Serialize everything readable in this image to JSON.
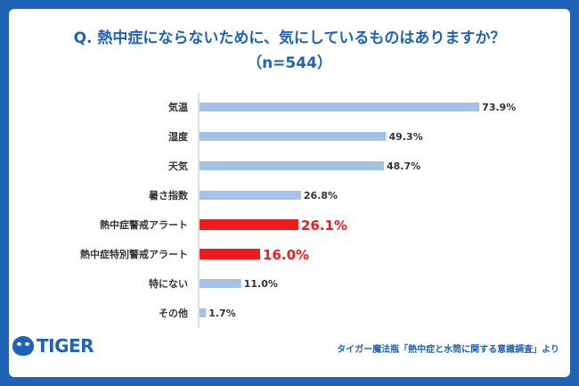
{
  "title_line1": "Q. 熱中症にならないために、気にしているものはありますか？",
  "title_line2": "（n=544）",
  "brand": "TIGER",
  "source": "タイガー魔法瓶「熱中症と水筒に関する意識調査」より",
  "colors": {
    "background": "#1e63b6",
    "bar": "#a4c2e6",
    "highlight": "#ee1c1c",
    "title": "#1e63b6"
  },
  "chart_data": {
    "type": "bar",
    "orientation": "horizontal",
    "title": "Q. 熱中症にならないために、気にしているものはありますか？",
    "subtitle": "（n=544）",
    "categories": [
      "気温",
      "湿度",
      "天気",
      "暑さ指数",
      "熱中症警戒アラート",
      "熱中症特別警戒アラート",
      "特にない",
      "その他"
    ],
    "values": [
      73.9,
      49.3,
      48.7,
      26.8,
      26.1,
      16.0,
      11.0,
      1.7
    ],
    "value_labels": [
      "73.9%",
      "49.3%",
      "48.7%",
      "26.8%",
      "26.1%",
      "16.0%",
      "11.0%",
      "1.7%"
    ],
    "highlight": [
      false,
      false,
      false,
      false,
      true,
      true,
      false,
      false
    ],
    "unit": "%",
    "xlim": [
      0,
      100
    ],
    "grid": false,
    "legend": "none"
  }
}
